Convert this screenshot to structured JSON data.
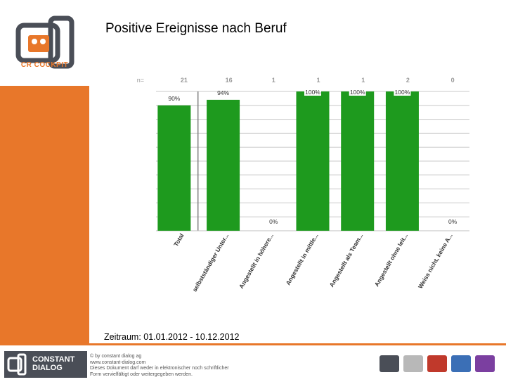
{
  "header": {
    "title": "Positive Ereignisse nach Beruf"
  },
  "sidebar": {
    "logo_text": "CR COCKPIT"
  },
  "footer": {
    "period": "Zeitraum: 01.01.2012 - 10.12.2012",
    "logo_text_1": "CONSTANT",
    "logo_text_2": "DIALOG",
    "copyright_1": "© by constant dialog ag",
    "copyright_2": "www.constant-dialog.com",
    "copyright_3": "Dieses Dokument darf weder in elektronischer noch schriftlicher",
    "copyright_4": "Form vervielfältigt oder weitergegeben werden.",
    "icons": [
      "cr-cockpit-icon",
      "dialog-icon",
      "vocomedia-icon",
      "dialog-development-icon",
      "dialog-research-icon"
    ]
  },
  "chart_data": {
    "type": "bar",
    "n_label": "n=",
    "categories": [
      "Total",
      "selbstständiger Unter...",
      "Angestellt in höhere...",
      "Angestellt in mittle...",
      "Angestellt als Team...",
      "Angestellt ohne leit...",
      "Weiss nicht, keine A..."
    ],
    "n": [
      21,
      16,
      1,
      1,
      1,
      2,
      0
    ],
    "values": [
      90,
      94,
      0,
      100,
      100,
      100,
      0
    ],
    "value_labels": [
      "90%",
      "94%",
      "0%",
      "100%",
      "100%",
      "100%",
      "0%"
    ],
    "ylim": [
      0,
      100
    ],
    "bar_color": "#1e9a1e",
    "grid": true
  }
}
